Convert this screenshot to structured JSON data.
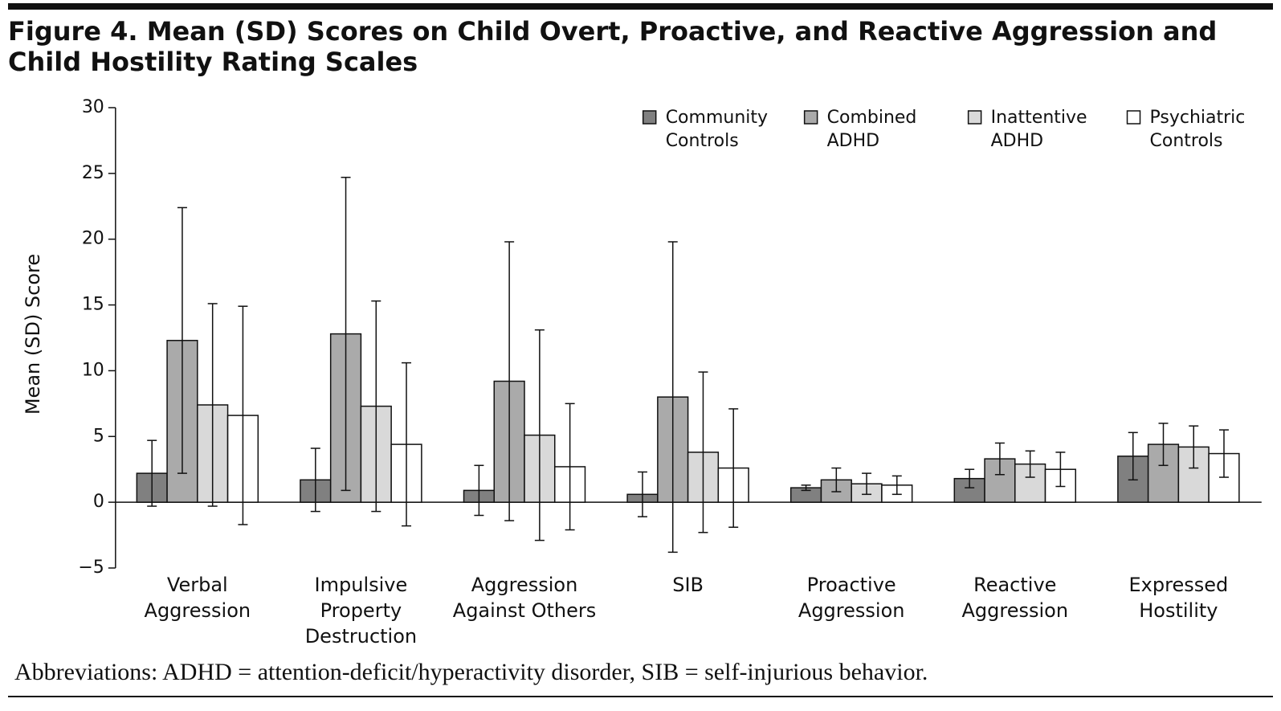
{
  "chart_data": {
    "type": "bar",
    "title": "Figure 4. Mean (SD) Scores on Child Overt, Proactive, and Reactive Aggression and Child Hostility Rating Scales",
    "ylabel": "Mean (SD) Score",
    "footnote": "Abbreviations: ADHD = attention-deficit/hyperactivity disorder, SIB = self-injurious behavior.",
    "categories": [
      [
        "Verbal",
        "Aggression"
      ],
      [
        "Impulsive",
        "Property",
        "Destruction"
      ],
      [
        "Aggression",
        "Against Others"
      ],
      [
        "SIB"
      ],
      [
        "Proactive",
        "Aggression"
      ],
      [
        "Reactive",
        "Aggression"
      ],
      [
        "Expressed",
        "Hostility"
      ]
    ],
    "series": [
      {
        "name": [
          "Community",
          "Controls"
        ],
        "color": "#808080",
        "values": [
          2.2,
          1.7,
          0.9,
          0.6,
          1.1,
          1.8,
          3.5
        ],
        "errors": [
          2.5,
          2.4,
          1.9,
          1.7,
          0.2,
          0.7,
          1.8
        ]
      },
      {
        "name": [
          "Combined",
          "ADHD"
        ],
        "color": "#aaaaaa",
        "values": [
          12.3,
          12.8,
          9.2,
          8.0,
          1.7,
          3.3,
          4.4
        ],
        "errors": [
          10.1,
          11.9,
          10.6,
          11.8,
          0.9,
          1.2,
          1.6
        ]
      },
      {
        "name": [
          "Inattentive",
          "ADHD"
        ],
        "color": "#d9d9d9",
        "values": [
          7.4,
          7.3,
          5.1,
          3.8,
          1.4,
          2.9,
          4.2
        ],
        "errors": [
          7.7,
          8.0,
          8.0,
          6.1,
          0.8,
          1.0,
          1.6
        ]
      },
      {
        "name": [
          "Psychiatric",
          "Controls"
        ],
        "color": "#ffffff",
        "values": [
          6.6,
          4.4,
          2.7,
          2.6,
          1.3,
          2.5,
          3.7
        ],
        "errors": [
          8.3,
          6.2,
          4.8,
          4.5,
          0.7,
          1.3,
          1.8
        ]
      }
    ],
    "ylim": [
      -5,
      30
    ],
    "yticks": [
      {
        "value": -5,
        "label": "−5"
      },
      0,
      5,
      10,
      15,
      20,
      25,
      30
    ],
    "legend": "top-right"
  }
}
